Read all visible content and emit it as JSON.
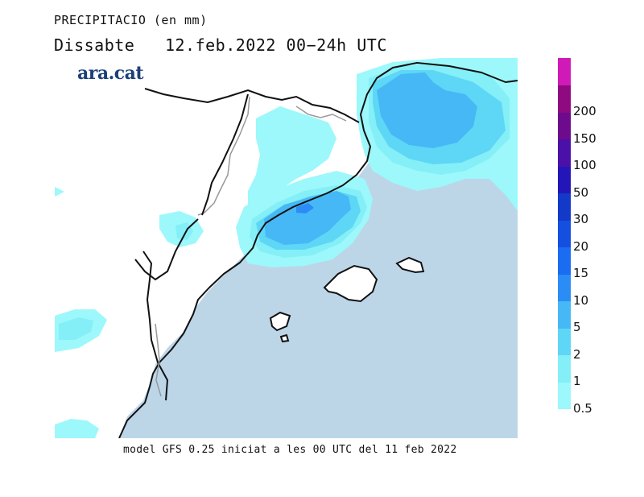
{
  "header": {
    "title": "PRECIPITACIO (en mm)",
    "subtitle": "Dissabte   12.feb.2022 00−24h UTC"
  },
  "logo": {
    "text": "ara.cat",
    "color": "#1c3f78"
  },
  "map": {
    "variable": "precipitation",
    "units": "mm",
    "period": "00-24h UTC",
    "date": "12.feb.2022",
    "sea_color": "#bcd6e8",
    "land_color": "#ffffff",
    "regions": [
      "Catalunya",
      "Illes Balears",
      "Comunitat Valenciana",
      "Aragó",
      "França"
    ]
  },
  "legend": {
    "levels": [
      {
        "label": "0.5",
        "color": "#9cf8fb"
      },
      {
        "label": "1",
        "color": "#84eff7"
      },
      {
        "label": "2",
        "color": "#5ed6f6"
      },
      {
        "label": "5",
        "color": "#46b8f6"
      },
      {
        "label": "10",
        "color": "#2b8cf5"
      },
      {
        "label": "15",
        "color": "#1a6cf0"
      },
      {
        "label": "20",
        "color": "#144fe0"
      },
      {
        "label": "30",
        "color": "#1239c8"
      },
      {
        "label": "50",
        "color": "#2316b8"
      },
      {
        "label": "100",
        "color": "#4a10a8"
      },
      {
        "label": "150",
        "color": "#6e0a8c"
      },
      {
        "label": "200",
        "color": "#8f0a80"
      },
      {
        "label": "",
        "color": "#d01ab8"
      }
    ]
  },
  "footer": {
    "text": "model GFS 0.25 iniciat a les 00 UTC del 11 feb 2022"
  }
}
